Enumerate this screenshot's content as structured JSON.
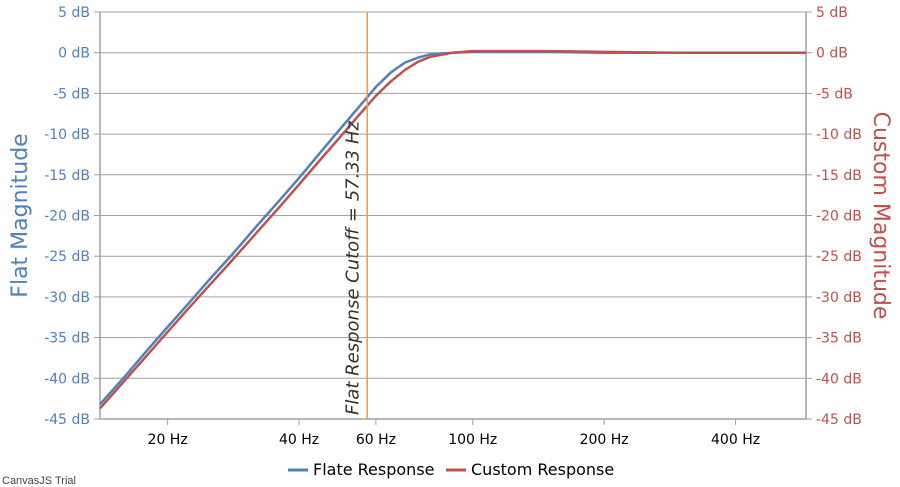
{
  "chart_data": {
    "type": "line",
    "x_scale": "log",
    "x_ticks": [
      {
        "value": 20,
        "label": "20 Hz"
      },
      {
        "value": 40,
        "label": "40 Hz"
      },
      {
        "value": 60,
        "label": "60 Hz"
      },
      {
        "value": 100,
        "label": "100 Hz"
      },
      {
        "value": 200,
        "label": "200 Hz"
      },
      {
        "value": 400,
        "label": "400 Hz"
      }
    ],
    "xlim": [
      14,
      580
    ],
    "y_ticks": [
      5,
      0,
      -5,
      -10,
      -15,
      -20,
      -25,
      -30,
      -35,
      -40,
      -45
    ],
    "y_tick_suffix": " dB",
    "ylim": [
      -45,
      5
    ],
    "ylabel_left": "Flat Magnitude",
    "ylabel_right": "Custom Magnitude",
    "grid": true,
    "legend_position": "bottom-center",
    "cutoff": {
      "x": 57.33,
      "label": "Flat Response Cutoff = 57.33 Hz",
      "color": "#f79646"
    },
    "series": [
      {
        "name": "Flate Response",
        "color": "#4f81bc",
        "axis": "left",
        "x": [
          14,
          16,
          18,
          20,
          22,
          25,
          28,
          32,
          36,
          40,
          45,
          50,
          55,
          60,
          65,
          70,
          75,
          80,
          90,
          100,
          120,
          150,
          200,
          300,
          400,
          580
        ],
        "y": [
          -43.2,
          -39.7,
          -36.5,
          -33.7,
          -31.2,
          -27.8,
          -24.9,
          -21.3,
          -18.2,
          -15.4,
          -12.1,
          -9.2,
          -6.6,
          -4.2,
          -2.4,
          -1.2,
          -0.6,
          -0.2,
          0,
          0.1,
          0.1,
          0.1,
          0,
          0,
          0,
          0
        ]
      },
      {
        "name": "Custom Response",
        "color": "#c0504e",
        "axis": "right",
        "x": [
          14,
          16,
          18,
          20,
          22,
          25,
          28,
          32,
          36,
          40,
          45,
          50,
          55,
          60,
          65,
          70,
          75,
          80,
          90,
          100,
          120,
          150,
          200,
          300,
          400,
          580
        ],
        "y": [
          -43.7,
          -40.2,
          -37.1,
          -34.3,
          -31.8,
          -28.5,
          -25.6,
          -22.1,
          -19.0,
          -16.2,
          -13.0,
          -10.2,
          -7.6,
          -5.3,
          -3.5,
          -2.1,
          -1.1,
          -0.5,
          0,
          0.2,
          0.2,
          0.2,
          0.1,
          0,
          0,
          0
        ]
      }
    ]
  },
  "credit": "CanvasJS Trial"
}
